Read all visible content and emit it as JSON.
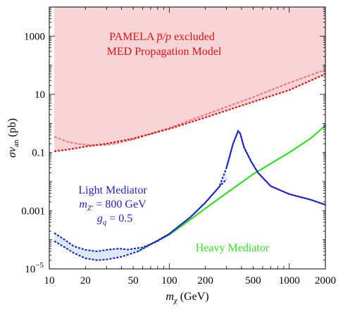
{
  "colors": {
    "excluded_fill": "#f9d4d6",
    "pamela_med": "#dd1010",
    "pamela_alt": "#ea7e7e",
    "light": "#1f24c8",
    "light_fill": "#dce9f7",
    "heavy": "#33dd22"
  },
  "chart_data": {
    "type": "line",
    "xscale": "log",
    "yscale": "log",
    "xlim": [
      10,
      2000
    ],
    "ylim": [
      1e-05,
      10000
    ],
    "xlabel_main": "m",
    "xlabel_sub": "χ",
    "xlabel_unit": " (GeV)",
    "ylabel_main": "σv",
    "ylabel_sub": "an",
    "ylabel_unit": " (pb)",
    "x_ticks": [
      {
        "v": 10,
        "label": "10"
      },
      {
        "v": 20,
        "label": "20"
      },
      {
        "v": 50,
        "label": "50"
      },
      {
        "v": 100,
        "label": "100"
      },
      {
        "v": 200,
        "label": "200"
      },
      {
        "v": 500,
        "label": "500"
      },
      {
        "v": 1000,
        "label": "1000"
      },
      {
        "v": 2000,
        "label": "2000"
      }
    ],
    "y_ticks": [
      {
        "v": 1e-05,
        "label": "10",
        "exp": "−5"
      },
      {
        "v": 0.001,
        "label": "0.001"
      },
      {
        "v": 0.1,
        "label": "0.1"
      },
      {
        "v": 10,
        "label": "10"
      },
      {
        "v": 1000,
        "label": "1000"
      }
    ],
    "annotations": {
      "pamela_line1_pre": "PAMELA ",
      "pamela_line1_ratio": "p̅/p",
      "pamela_line1_post": " excluded",
      "pamela_line2": "MED Propagation Model",
      "light_title": "Light Mediator",
      "light_mass_var": "m",
      "light_mass_sub": "Z'",
      "light_mass_val": " = 800 GeV",
      "light_coupling_var": "g",
      "light_coupling_sub": "q",
      "light_coupling_val": " = 0.5",
      "heavy_label": "Heavy Mediator"
    },
    "series": {
      "pamela_med": [
        [
          11,
          0.11
        ],
        [
          15,
          0.13
        ],
        [
          20,
          0.16
        ],
        [
          30,
          0.2
        ],
        [
          50,
          0.3
        ],
        [
          100,
          0.65
        ],
        [
          200,
          1.6
        ],
        [
          500,
          5.5
        ],
        [
          1000,
          14
        ],
        [
          2000,
          50
        ]
      ],
      "pamela_alt": [
        [
          11,
          0.35
        ],
        [
          14,
          0.24
        ],
        [
          17,
          0.2
        ],
        [
          22,
          0.18
        ],
        [
          28,
          0.18
        ],
        [
          35,
          0.2
        ],
        [
          50,
          0.28
        ],
        [
          100,
          0.7
        ],
        [
          200,
          2
        ],
        [
          500,
          8
        ],
        [
          1000,
          25
        ],
        [
          2000,
          70
        ]
      ],
      "light_upper": [
        [
          11,
          0.00017
        ],
        [
          13,
          0.00011
        ],
        [
          16,
          6e-05
        ],
        [
          20,
          4.5e-05
        ],
        [
          25,
          4e-05
        ],
        [
          30,
          4.5e-05
        ],
        [
          38,
          5e-05
        ],
        [
          45,
          4.6e-05
        ],
        [
          60,
          5.5e-05
        ],
        [
          80,
          9e-05
        ],
        [
          100,
          0.00016
        ],
        [
          150,
          0.0006
        ],
        [
          200,
          0.0019
        ],
        [
          260,
          0.0065
        ],
        [
          300,
          0.03
        ],
        [
          340,
          0.2
        ],
        [
          375,
          0.55
        ],
        [
          390,
          0.45
        ],
        [
          420,
          0.15
        ],
        [
          480,
          0.05
        ],
        [
          550,
          0.02
        ],
        [
          700,
          0.007
        ],
        [
          1000,
          0.0037
        ],
        [
          1500,
          0.0024
        ],
        [
          2000,
          0.0016
        ]
      ],
      "light_lower": [
        [
          11,
          9e-05
        ],
        [
          13,
          6e-05
        ],
        [
          16,
          3.5e-05
        ],
        [
          20,
          2.3e-05
        ],
        [
          25,
          2e-05
        ],
        [
          30,
          2.1e-05
        ],
        [
          40,
          2.6e-05
        ],
        [
          55,
          4e-05
        ],
        [
          70,
          7e-05
        ],
        [
          100,
          0.00016
        ],
        [
          150,
          0.0006
        ],
        [
          200,
          0.0019
        ],
        [
          260,
          0.0065
        ],
        [
          300,
          0.012
        ]
      ],
      "heavy": [
        [
          55,
          4e-05
        ],
        [
          70,
          7e-05
        ],
        [
          100,
          0.00015
        ],
        [
          150,
          0.0005
        ],
        [
          200,
          0.0012
        ],
        [
          300,
          0.004
        ],
        [
          500,
          0.018
        ],
        [
          1000,
          0.1
        ],
        [
          1500,
          0.3
        ],
        [
          2000,
          0.85
        ]
      ]
    }
  }
}
